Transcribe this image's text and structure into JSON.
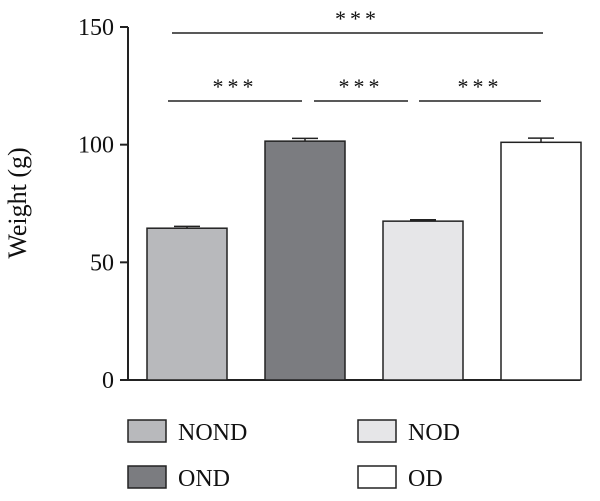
{
  "chart_data": {
    "type": "bar",
    "categories": [
      "NOND",
      "OND",
      "NOD",
      "OD"
    ],
    "values": [
      64.5,
      101.5,
      67.5,
      101.0
    ],
    "errors": [
      0.8,
      1.2,
      0.6,
      1.8
    ],
    "colors": [
      "#b8b9bc",
      "#7b7c80",
      "#e6e6e8",
      "#ffffff"
    ],
    "ylabel": "Weight (g)",
    "ylim": [
      0,
      150
    ],
    "yticks": [
      0,
      50,
      100,
      150
    ],
    "legend": {
      "placement": "bottom",
      "entries": [
        {
          "label": "NOND",
          "color": "#b8b9bc"
        },
        {
          "label": "NOD",
          "color": "#e6e6e8"
        },
        {
          "label": "OND",
          "color": "#7b7c80"
        },
        {
          "label": "OD",
          "color": "#ffffff"
        }
      ]
    },
    "significance": [
      {
        "from": "NOND",
        "to": "OD",
        "label": "***"
      },
      {
        "from": "NOND",
        "to": "OND",
        "label": "***"
      },
      {
        "from": "OND",
        "to": "NOD",
        "label": "***"
      },
      {
        "from": "NOD",
        "to": "OD",
        "label": "***"
      }
    ]
  }
}
